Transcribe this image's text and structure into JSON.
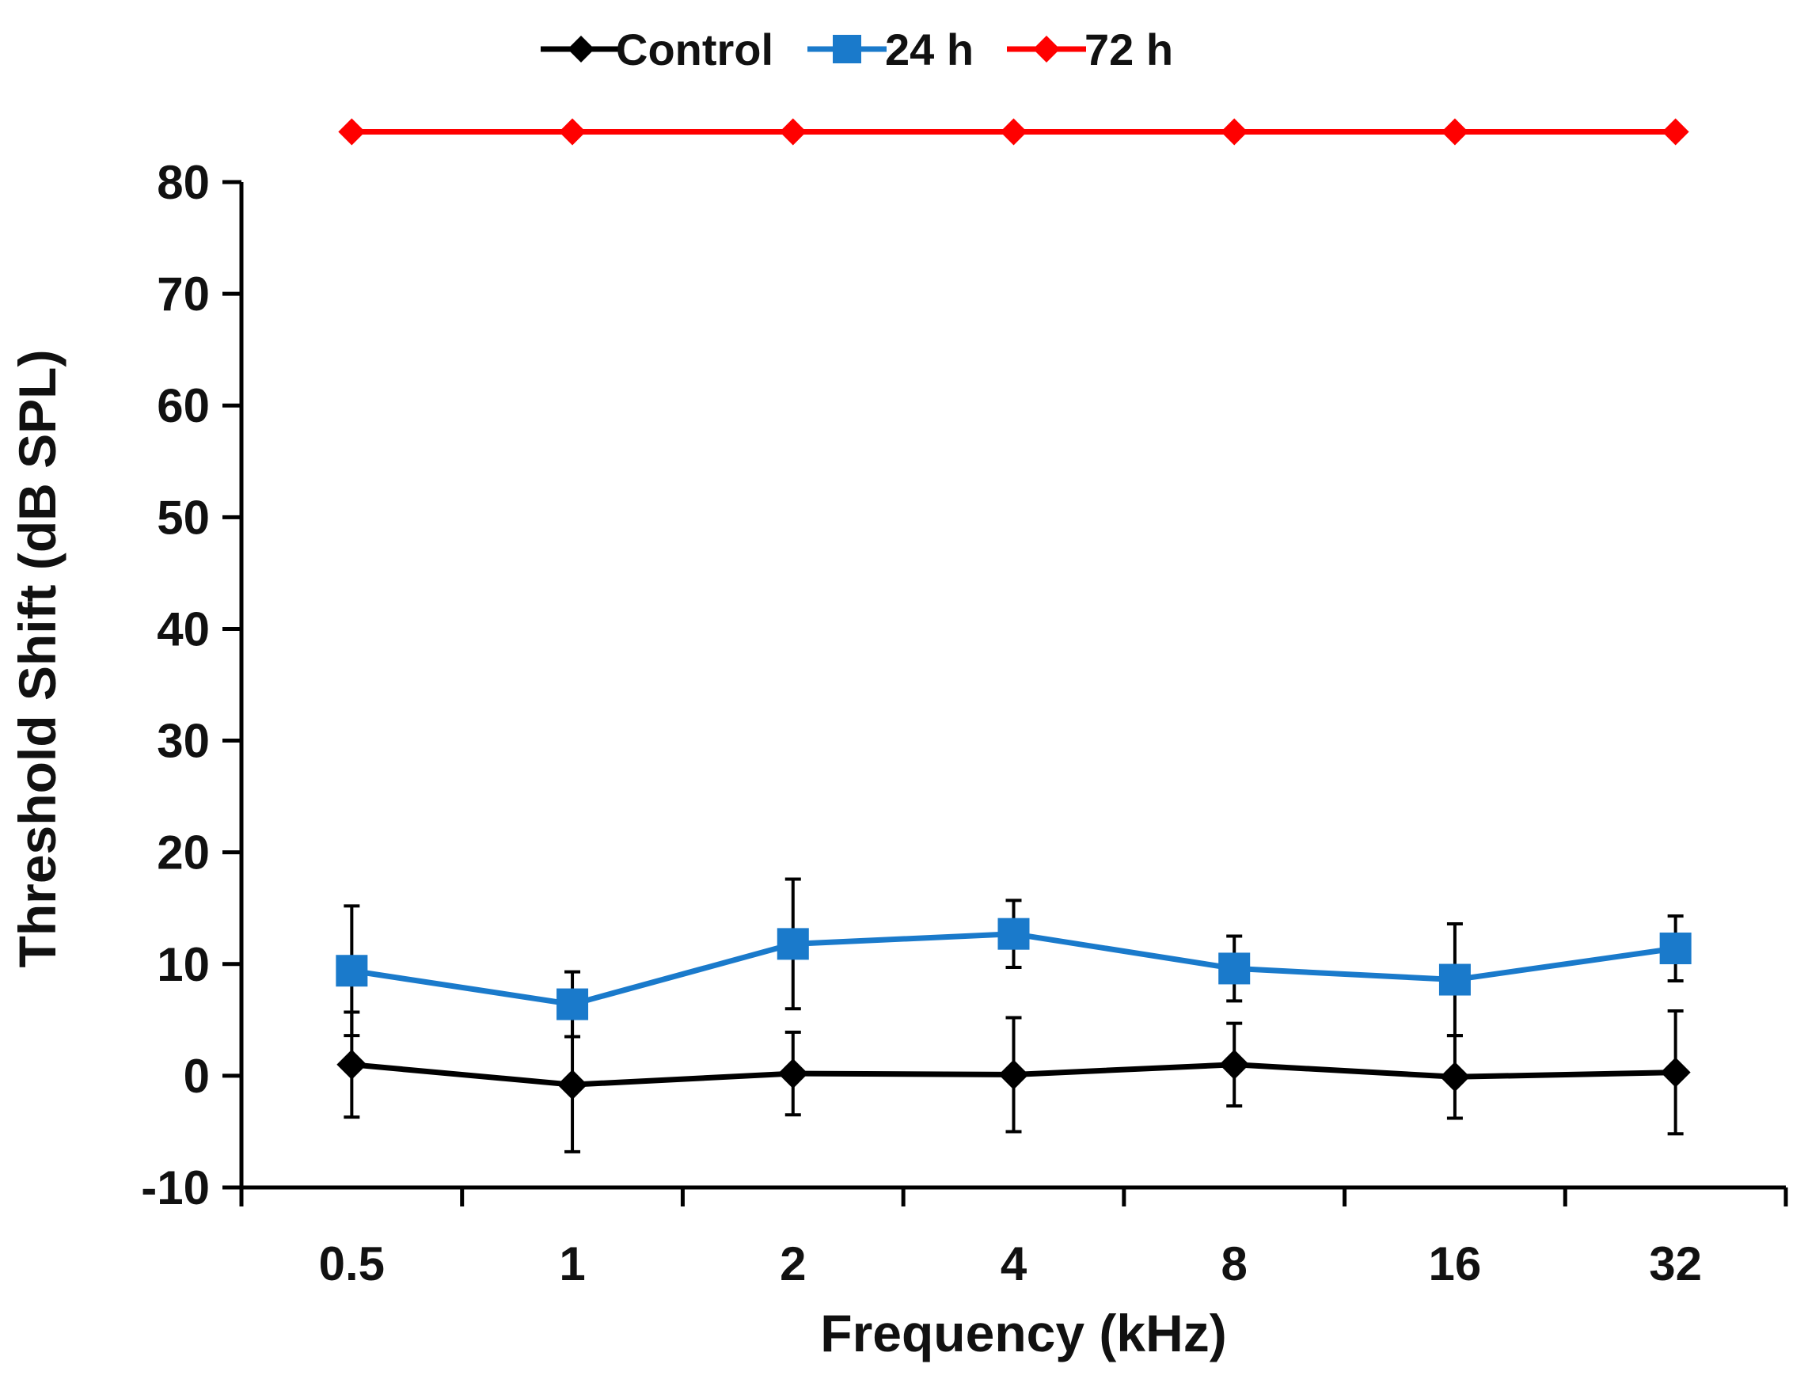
{
  "chart_data": {
    "type": "line",
    "title": "",
    "xlabel": "Frequency (kHz)",
    "ylabel": "Threshold Shift (dB SPL)",
    "categories": [
      "0.5",
      "1",
      "2",
      "4",
      "8",
      "16",
      "32"
    ],
    "ylim": [
      -10,
      80
    ],
    "yticks": [
      -10,
      0,
      10,
      20,
      30,
      40,
      50,
      60,
      70,
      80
    ],
    "grid": false,
    "legend_position": "top-center",
    "series": [
      {
        "name": "Control",
        "color": "#000000",
        "marker": "diamond",
        "values": [
          1.0,
          -0.8,
          0.2,
          0.1,
          1.0,
          -0.1,
          0.3
        ],
        "error": [
          4.7,
          6.0,
          3.7,
          5.1,
          3.7,
          3.7,
          5.5
        ]
      },
      {
        "name": "24 h",
        "color": "#1A7ACB",
        "marker": "square",
        "values": [
          9.4,
          6.4,
          11.8,
          12.7,
          9.6,
          8.6,
          11.4
        ],
        "error": [
          5.8,
          2.9,
          5.8,
          3.0,
          2.9,
          5.0,
          2.9
        ]
      },
      {
        "name": "72 h",
        "color": "#FF0000",
        "marker": "diamond",
        "values": [
          84.5,
          84.5,
          84.5,
          84.5,
          84.5,
          84.5,
          84.5
        ],
        "error": [
          0,
          0,
          0,
          0,
          0,
          0,
          0
        ]
      }
    ]
  }
}
